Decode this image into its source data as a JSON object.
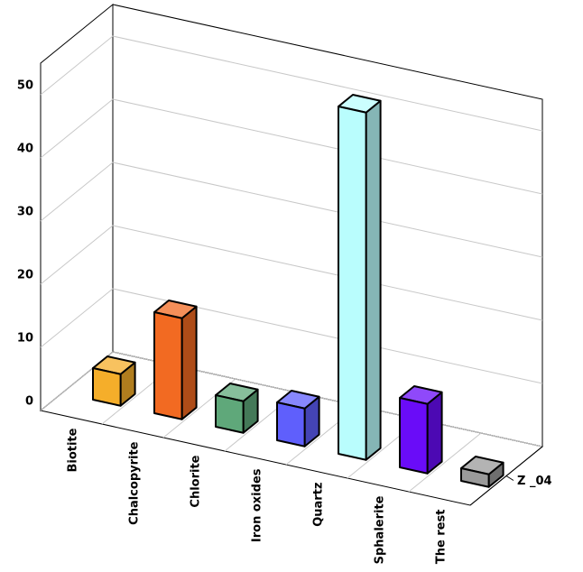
{
  "chart_data": {
    "type": "bar3d",
    "categories": [
      "Biotite",
      "Chalcopyrite",
      "Chlorite",
      "Iron oxides",
      "Quartz",
      "Sphalerite",
      "The rest"
    ],
    "series": [
      {
        "name": "Z _04",
        "values": [
          5,
          16,
          5,
          6,
          55,
          11,
          2
        ],
        "colors": [
          "#f5ae2a",
          "#f26a22",
          "#5fa87a",
          "#5f5ffc",
          "#b9fdfd",
          "#6a0cf8",
          "#9a9a9a"
        ]
      }
    ],
    "ylim": [
      0,
      55
    ],
    "yticks": [
      0,
      10,
      20,
      30,
      40,
      50
    ],
    "grid": true
  }
}
